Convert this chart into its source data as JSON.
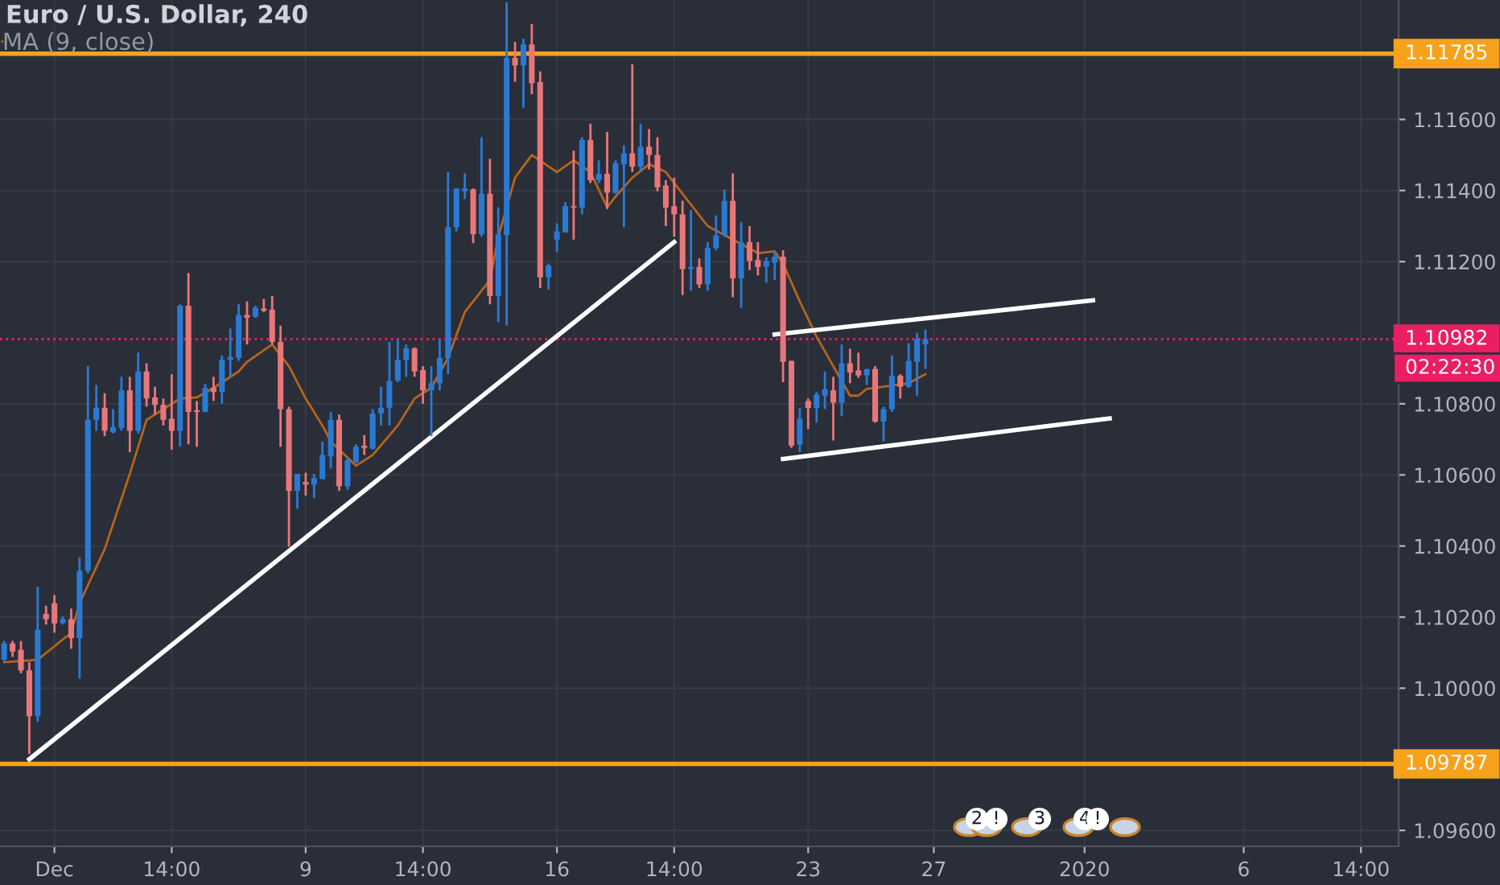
{
  "chart_data": {
    "type": "candlestick",
    "title": "Euro / U.S. Dollar, 240",
    "colors": [
      "#2a7ad4",
      "#e8777a",
      "#e8777a",
      "#e8777a",
      "#2a7ad4",
      "#e8777a",
      "#e8777a",
      "#2a7ad4",
      "#e8777a",
      "#2a7ad4",
      "#2a7ad4",
      "#2a7ad4",
      "#e8777a",
      "#2a7ad4",
      "#2a7ad4",
      "#e8777a",
      "#2a7ad4",
      "#e8777a",
      "#e8777a",
      "#e8777a",
      "#e8777a",
      "#2a7ad4",
      "#e8777a",
      "#e8777a",
      "#2a7ad4",
      "#e8777a",
      "#2a7ad4",
      "#2a7ad4",
      "#2a7ad4",
      "#e8777a",
      "#2a7ad4",
      "#e8777a",
      "#e8777a",
      "#e8777a",
      "#e8777a",
      "#2a7ad4",
      "#e8777a",
      "#2a7ad4",
      "#2a7ad4",
      "#2a7ad4",
      "#e8777a",
      "#2a7ad4",
      "#2a7ad4",
      "#e8777a",
      "#2a7ad4",
      "#2a7ad4",
      "#2a7ad4",
      "#2a7ad4",
      "#2a7ad4",
      "#e8777a",
      "#e8777a",
      "#2a7ad4",
      "#2a7ad4",
      "#2a7ad4",
      "#2a7ad4",
      "#2a7ad4",
      "#e8777a",
      "#2a7ad4",
      "#e8777a",
      "#2a7ad4",
      "#2a7ad4",
      "#e8777a",
      "#2a7ad4",
      "#e8777a",
      "#e8777a",
      "#2a7ad4",
      "#2a7ad4",
      "#2a7ad4",
      "#e8777a",
      "#2a7ad4",
      "#e8777a",
      "#2a7ad4",
      "#e8777a",
      "#2a7ad4",
      "#2a7ad4",
      "#e8777a",
      "#2a7ad4",
      "#e8777a",
      "#e8777a",
      "#e8777a",
      "#e8777a",
      "#e8777a",
      "#2a7ad4",
      "#e8777a",
      "#2a7ad4",
      "#2a7ad4",
      "#2a7ad4",
      "#e8777a",
      "#2a7ad4",
      "#e8777a",
      "#e8777a",
      "#2a7ad4",
      "#2a7ad4",
      "#e8777a",
      "#e8777a",
      "#2a7ad4",
      "#e8777a",
      "#2a7ad4",
      "#2a7ad4",
      "#e8777a",
      "#2a7ad4",
      "#e8777a",
      "#e8777a",
      "#2a7ad4",
      "#e8777a",
      "#2a7ad4",
      "#2a7ad4",
      "#e8777a",
      "#2a7ad4",
      "#2a7ad4",
      "#2a7ad4",
      null,
      null,
      null,
      null,
      null,
      null,
      null,
      null,
      null,
      null,
      null,
      null,
      null,
      null,
      null,
      null,
      null,
      null,
      null,
      null,
      null,
      null,
      null,
      null,
      null,
      null,
      null,
      null,
      null,
      null,
      null,
      null,
      null,
      null,
      null,
      null,
      null,
      null,
      null,
      null,
      null,
      null,
      null,
      null,
      null,
      null,
      null,
      null,
      null,
      null,
      null,
      null,
      null,
      null,
      null,
      null
    ],
    "categories": [
      null,
      null,
      null,
      null,
      null,
      null,
      "Dec",
      null,
      null,
      null,
      null,
      null,
      null,
      null,
      null,
      null,
      null,
      null,
      null,
      null,
      "14:00",
      null,
      null,
      null,
      null,
      null,
      null,
      null,
      null,
      null,
      null,
      null,
      null,
      null,
      null,
      null,
      "9",
      null,
      null,
      null,
      null,
      null,
      null,
      null,
      null,
      null,
      null,
      null,
      null,
      null,
      "14:00",
      null,
      null,
      null,
      null,
      null,
      null,
      null,
      null,
      null,
      null,
      null,
      null,
      null,
      null,
      null,
      "16",
      null,
      null,
      null,
      null,
      null,
      null,
      null,
      null,
      null,
      null,
      null,
      null,
      null,
      "14:00",
      null,
      null,
      null,
      null,
      null,
      null,
      null,
      null,
      null,
      null,
      null,
      null,
      null,
      null,
      null,
      "23",
      null,
      null,
      null,
      null,
      null,
      null,
      null,
      null,
      null,
      null,
      null,
      null,
      null,
      null,
      "27",
      null,
      null,
      null,
      null,
      null,
      null,
      null,
      null,
      null,
      null,
      null,
      null,
      null,
      null,
      null,
      null,
      null,
      "2020",
      null,
      null,
      null,
      null,
      null,
      null,
      null,
      null,
      null,
      null,
      null,
      null,
      null,
      null,
      null,
      null,
      null,
      null,
      "6",
      null,
      null,
      null,
      null,
      null,
      null,
      null,
      null,
      null,
      null,
      null,
      null,
      null,
      "14:00",
      null,
      null,
      null,
      null
    ],
    "ohlc": [
      [
        1.1008,
        1.10133,
        1.10076,
        1.10126
      ],
      [
        1.10126,
        1.10133,
        1.10088,
        1.10103
      ],
      [
        1.10108,
        1.10133,
        1.10042,
        1.1005
      ],
      [
        1.1005,
        1.10073,
        1.09815,
        1.09921
      ],
      [
        1.09921,
        1.10285,
        1.09906,
        1.10164
      ],
      [
        1.10209,
        1.10232,
        1.10179,
        1.10194
      ],
      [
        1.10239,
        1.10262,
        1.10156,
        1.10182
      ],
      [
        1.10183,
        1.10202,
        1.10179,
        1.10194
      ],
      [
        1.10194,
        1.10224,
        1.10111,
        1.10141
      ],
      [
        1.10141,
        1.10368,
        1.10027,
        1.1033
      ],
      [
        1.1033,
        1.10906,
        1.10323,
        1.10755
      ],
      [
        1.10755,
        1.10853,
        1.10724,
        1.10789
      ],
      [
        1.10789,
        1.1083,
        1.10709,
        1.10724
      ],
      [
        1.1072,
        1.10785,
        1.10717,
        1.10735
      ],
      [
        1.10732,
        1.10876,
        1.10724,
        1.10838
      ],
      [
        1.10838,
        1.10876,
        1.10664,
        1.10724
      ],
      [
        1.10724,
        1.10944,
        1.10717,
        1.10891
      ],
      [
        1.10891,
        1.10914,
        1.10792,
        1.10815
      ],
      [
        1.10818,
        1.10848,
        1.1077,
        1.10797
      ],
      [
        1.10797,
        1.10815,
        1.10739,
        1.10755
      ],
      [
        1.10758,
        1.10883,
        1.10671,
        1.10724
      ],
      [
        1.10724,
        1.1108,
        1.10679,
        1.11076
      ],
      [
        1.11076,
        1.11168,
        1.10686,
        1.10777
      ],
      [
        1.10782,
        1.10808,
        1.10679,
        1.10777
      ],
      [
        1.10777,
        1.10856,
        1.10777,
        1.10845
      ],
      [
        1.10845,
        1.10876,
        1.10808,
        1.10833
      ],
      [
        1.10833,
        1.10936,
        1.108,
        1.10924
      ],
      [
        1.10924,
        1.11012,
        1.10876,
        1.10932
      ],
      [
        1.10929,
        1.1108,
        1.10921,
        1.1105
      ],
      [
        1.1105,
        1.11088,
        1.10967,
        1.11042
      ],
      [
        1.11045,
        1.11076,
        1.11042,
        1.1107
      ],
      [
        1.11068,
        1.11095,
        1.11058,
        1.11062
      ],
      [
        1.11065,
        1.11103,
        1.10967,
        1.10974
      ],
      [
        1.10974,
        1.1102,
        1.10679,
        1.10785
      ],
      [
        1.10785,
        1.10792,
        1.10398,
        1.10555
      ],
      [
        1.10555,
        1.10603,
        1.10505,
        1.10603
      ],
      [
        1.1058,
        1.10606,
        1.10542,
        1.10573
      ],
      [
        1.10573,
        1.10603,
        1.10535,
        1.10591
      ],
      [
        1.10588,
        1.10694,
        1.10588,
        1.10656
      ],
      [
        1.10652,
        1.10777,
        1.10618,
        1.10755
      ],
      [
        1.10755,
        1.1077,
        1.10555,
        1.10568
      ],
      [
        1.10568,
        1.10648,
        1.10558,
        1.10641
      ],
      [
        1.10636,
        1.10686,
        1.10633,
        1.10679
      ],
      [
        1.10682,
        1.10712,
        1.10656,
        1.10676
      ],
      [
        1.10674,
        1.10785,
        1.10671,
        1.10773
      ],
      [
        1.10773,
        1.10848,
        1.10739,
        1.10789
      ],
      [
        1.10789,
        1.10974,
        1.10739,
        1.10865
      ],
      [
        1.10865,
        1.10982,
        1.10861,
        1.10924
      ],
      [
        1.10924,
        1.10967,
        1.10876,
        1.10956
      ],
      [
        1.10956,
        1.10959,
        1.10876,
        1.10891
      ],
      [
        1.10895,
        1.10906,
        1.108,
        1.10838
      ],
      [
        1.10838,
        1.10906,
        1.10709,
        1.10858
      ],
      [
        1.10858,
        1.10982,
        1.10838,
        1.10929
      ],
      [
        1.10929,
        1.11452,
        1.10883,
        1.11297
      ],
      [
        1.11297,
        1.11406,
        1.11285,
        1.11406
      ],
      [
        1.11398,
        1.11448,
        1.11376,
        1.11406
      ],
      [
        1.11403,
        1.11406,
        1.11252,
        1.11277
      ],
      [
        1.11277,
        1.1155,
        1.1127,
        1.11391
      ],
      [
        1.11391,
        1.11489,
        1.1108,
        1.11103
      ],
      [
        1.11103,
        1.11353,
        1.1103,
        1.11277
      ],
      [
        1.11274,
        1.1193,
        1.1102,
        1.11773
      ],
      [
        1.11773,
        1.11818,
        1.11706,
        1.11752
      ],
      [
        1.11752,
        1.11827,
        1.11633,
        1.11811
      ],
      [
        1.11811,
        1.11868,
        1.11671,
        1.11702
      ],
      [
        1.11705,
        1.11735,
        1.11126,
        1.11156
      ],
      [
        1.11156,
        1.11194,
        1.11121,
        1.11189
      ],
      [
        1.11262,
        1.11308,
        1.11227,
        1.11285
      ],
      [
        1.11282,
        1.11368,
        1.11282,
        1.11356
      ],
      [
        1.11356,
        1.11512,
        1.11262,
        1.11352
      ],
      [
        1.11352,
        1.1155,
        1.11333,
        1.11542
      ],
      [
        1.11542,
        1.11588,
        1.11421,
        1.11429
      ],
      [
        1.11429,
        1.11485,
        1.11421,
        1.11447
      ],
      [
        1.11447,
        1.11565,
        1.11348,
        1.11394
      ],
      [
        1.11394,
        1.11485,
        1.11391,
        1.11477
      ],
      [
        1.11474,
        1.11527,
        1.11297,
        1.11505
      ],
      [
        1.11505,
        1.11755,
        1.11452,
        1.11467
      ],
      [
        1.11467,
        1.11588,
        1.11452,
        1.11523
      ],
      [
        1.11523,
        1.11573,
        1.11459,
        1.115
      ],
      [
        1.115,
        1.1155,
        1.11398,
        1.11409
      ],
      [
        1.11414,
        1.11429,
        1.113,
        1.11352
      ],
      [
        1.11356,
        1.11436,
        1.1127,
        1.11333
      ],
      [
        1.11333,
        1.11371,
        1.11106,
        1.11179
      ],
      [
        1.11179,
        1.11345,
        1.11118,
        1.11185
      ],
      [
        1.11185,
        1.11209,
        1.11126,
        1.11136
      ],
      [
        1.11136,
        1.11255,
        1.11118,
        1.11239
      ],
      [
        1.11239,
        1.1133,
        1.11232,
        1.11274
      ],
      [
        1.11274,
        1.11403,
        1.1127,
        1.11371
      ],
      [
        1.11371,
        1.11448,
        1.111,
        1.11153
      ],
      [
        1.11153,
        1.11311,
        1.1107,
        1.11255
      ],
      [
        1.11255,
        1.113,
        1.11176,
        1.11202
      ],
      [
        1.11205,
        1.11255,
        1.11161,
        1.11185
      ],
      [
        1.11186,
        1.11212,
        1.11141,
        1.11202
      ],
      [
        1.11197,
        1.11232,
        1.11148,
        1.11214
      ],
      [
        1.11214,
        1.11232,
        1.10861,
        1.10918
      ],
      [
        1.10921,
        1.10921,
        1.10676,
        1.10682
      ],
      [
        1.10685,
        1.10788,
        1.10664,
        1.10758
      ],
      [
        1.10808,
        1.10815,
        1.10729,
        1.10788
      ],
      [
        1.10788,
        1.10833,
        1.10747,
        1.10826
      ],
      [
        1.10823,
        1.10891,
        1.10785,
        1.10841
      ],
      [
        1.10838,
        1.10876,
        1.10697,
        1.10803
      ],
      [
        1.10803,
        1.10967,
        1.10765,
        1.10914
      ],
      [
        1.10914,
        1.10955,
        1.10858,
        1.10888
      ],
      [
        1.10894,
        1.10944,
        1.10873,
        1.1088
      ],
      [
        1.1088,
        1.10898,
        1.10853,
        1.10898
      ],
      [
        1.10898,
        1.10906,
        1.10747,
        1.1075
      ],
      [
        1.1075,
        1.10792,
        1.10694,
        1.10785
      ],
      [
        1.10785,
        1.10936,
        1.10777,
        1.10879
      ],
      [
        1.10879,
        1.10883,
        1.10815,
        1.10848
      ],
      [
        1.10848,
        1.1097,
        1.10845,
        1.10921
      ],
      [
        1.10918,
        1.11,
        1.10823,
        1.10982
      ],
      [
        1.10967,
        1.11009,
        1.10898,
        1.10982
      ],
      null,
      null,
      null,
      null,
      null,
      null,
      null,
      null,
      null,
      null,
      null,
      null,
      null,
      null,
      null,
      null,
      null,
      null,
      null,
      null,
      null,
      null,
      null,
      null,
      null,
      null,
      null,
      null,
      null,
      null,
      null,
      null,
      null,
      null,
      null,
      null,
      null,
      null,
      null,
      null,
      null,
      null,
      null,
      null,
      null,
      null,
      null,
      null,
      null,
      null,
      null,
      null,
      null,
      null,
      null,
      null
    ],
    "series": [
      {
        "name": "MA (9, close)",
        "type": "line",
        "color": "#b5651d",
        "values": [
          1.10073,
          null,
          null,
          null,
          1.1008,
          null,
          null,
          null,
          1.10156,
          1.10239,
          null,
          null,
          1.10391,
          null,
          null,
          1.10603,
          null,
          1.10755,
          null,
          1.10785,
          null,
          1.10815,
          null,
          1.10818,
          null,
          1.10845,
          null,
          null,
          1.10891,
          1.10918,
          null,
          null,
          1.10967,
          null,
          1.10906,
          null,
          1.10815,
          null,
          1.10739,
          1.10694,
          null,
          null,
          1.10626,
          null,
          1.10656,
          null,
          null,
          1.10739,
          null,
          1.10815,
          null,
          1.10845,
          null,
          1.10929,
          null,
          1.11058,
          null,
          null,
          1.11148,
          1.1127,
          null,
          1.11436,
          null,
          1.115,
          null,
          null,
          1.11452,
          null,
          1.11485,
          null,
          1.11452,
          null,
          1.11353,
          1.11383,
          null,
          1.11436,
          null,
          1.11474,
          null,
          1.11452,
          null,
          1.11391,
          null,
          null,
          1.113,
          null,
          null,
          1.11262,
          null,
          null,
          1.11224,
          null,
          1.11229,
          1.11194,
          null,
          1.11088,
          null,
          1.10989,
          null,
          1.10906,
          null,
          1.10823,
          1.10823,
          1.10842,
          null,
          1.10848,
          null,
          null,
          1.10858,
          null,
          1.10883,
          null,
          null,
          null,
          null,
          null,
          null,
          null,
          null,
          null,
          null,
          null,
          null,
          null,
          null,
          null,
          null,
          null,
          null,
          null,
          null,
          null,
          null,
          null,
          null,
          null,
          null,
          null,
          null,
          null,
          null,
          null,
          null,
          null,
          null,
          null,
          null,
          null,
          null,
          null,
          null,
          null,
          null,
          null,
          null,
          null,
          null,
          null,
          null,
          null,
          null,
          null,
          null,
          null,
          null,
          null,
          null
        ]
      },
      {
        "type": "line",
        "color": "#ffffff",
        "values": [
          null,
          null,
          null,
          1.098,
          null,
          null,
          null,
          null,
          null,
          null,
          null,
          null,
          null,
          null,
          null,
          null,
          null,
          null,
          null,
          null,
          null,
          null,
          null,
          null,
          null,
          null,
          null,
          null,
          null,
          null,
          null,
          null,
          null,
          null,
          null,
          null,
          null,
          null,
          null,
          null,
          null,
          null,
          null,
          null,
          null,
          null,
          null,
          null,
          null,
          null,
          null,
          null,
          null,
          null,
          null,
          null,
          null,
          null,
          null,
          null,
          null,
          null,
          null,
          null,
          null,
          null,
          null,
          null,
          null,
          null,
          null,
          null,
          null,
          null,
          null,
          null,
          null,
          null,
          null,
          null,
          1.11255,
          null,
          null,
          null,
          null,
          null,
          null,
          null,
          null,
          null,
          null,
          null,
          null,
          null,
          null,
          null,
          null,
          null,
          null,
          null,
          null,
          null,
          null,
          null,
          null,
          null,
          null,
          null,
          null,
          null,
          null,
          null,
          null,
          null,
          null,
          null,
          null,
          null,
          null,
          null,
          null,
          null,
          null,
          null,
          null,
          null,
          null,
          null,
          null,
          null,
          null,
          null,
          null,
          null,
          null,
          null,
          null,
          null,
          null,
          null,
          null,
          null,
          null,
          null,
          null,
          null,
          null,
          null,
          null,
          null,
          null,
          null,
          null,
          null,
          null,
          null,
          null,
          null,
          null,
          null,
          null,
          null,
          null,
          null,
          null,
          null,
          null
        ]
      },
      {
        "type": "line",
        "color": "#ffffff",
        "values": [
          null,
          null,
          null,
          null,
          null,
          null,
          null,
          null,
          null,
          null,
          null,
          null,
          null,
          null,
          null,
          null,
          null,
          null,
          null,
          null,
          null,
          null,
          null,
          null,
          null,
          null,
          null,
          null,
          null,
          null,
          null,
          null,
          null,
          null,
          null,
          null,
          null,
          null,
          null,
          null,
          null,
          null,
          null,
          null,
          null,
          null,
          null,
          null,
          null,
          null,
          null,
          null,
          null,
          null,
          null,
          null,
          null,
          null,
          null,
          null,
          null,
          null,
          null,
          null,
          null,
          null,
          null,
          null,
          null,
          null,
          null,
          null,
          null,
          null,
          null,
          null,
          null,
          null,
          null,
          null,
          null,
          null,
          null,
          null,
          null,
          null,
          null,
          null,
          null,
          null,
          null,
          null,
          1.10995,
          null,
          null,
          null,
          null,
          null,
          null,
          null,
          null,
          null,
          null,
          null,
          null,
          null,
          null,
          null,
          null,
          null,
          null,
          null,
          null,
          null,
          null,
          null,
          null,
          null,
          null,
          null,
          null,
          null,
          null,
          null,
          null,
          null,
          null,
          null,
          null,
          null,
          1.11091,
          null,
          null,
          null,
          null,
          null,
          null,
          null,
          null,
          null,
          null,
          null,
          null,
          null,
          null,
          null,
          null,
          null,
          null,
          null,
          null,
          null,
          null,
          null,
          null,
          null,
          null,
          null,
          null,
          null,
          null,
          null,
          null,
          null,
          null,
          null,
          null
        ]
      },
      {
        "type": "line",
        "color": "#ffffff",
        "values": [
          null,
          null,
          null,
          null,
          null,
          null,
          null,
          null,
          null,
          null,
          null,
          null,
          null,
          null,
          null,
          null,
          null,
          null,
          null,
          null,
          null,
          null,
          null,
          null,
          null,
          null,
          null,
          null,
          null,
          null,
          null,
          null,
          null,
          null,
          null,
          null,
          null,
          null,
          null,
          null,
          null,
          null,
          null,
          null,
          null,
          null,
          null,
          null,
          null,
          null,
          null,
          null,
          null,
          null,
          null,
          null,
          null,
          null,
          null,
          null,
          null,
          null,
          null,
          null,
          null,
          null,
          null,
          null,
          null,
          null,
          null,
          null,
          null,
          null,
          null,
          null,
          null,
          null,
          null,
          null,
          null,
          null,
          null,
          null,
          null,
          null,
          null,
          null,
          null,
          null,
          null,
          null,
          null,
          1.10645,
          null,
          null,
          null,
          null,
          null,
          null,
          null,
          null,
          null,
          null,
          null,
          null,
          null,
          null,
          null,
          null,
          null,
          null,
          null,
          null,
          null,
          null,
          null,
          null,
          null,
          null,
          null,
          null,
          null,
          null,
          null,
          null,
          null,
          null,
          null,
          null,
          null,
          null,
          1.10759,
          null,
          null,
          null,
          null,
          null,
          null,
          null,
          null,
          null,
          null,
          null,
          null,
          null,
          null,
          null,
          null,
          null,
          null,
          null,
          null,
          null,
          null,
          null,
          null,
          null,
          null,
          null,
          null,
          null,
          null,
          null,
          null,
          null,
          null
        ]
      }
    ],
    "ylim": [
      1.09555,
      1.11936
    ],
    "yticks": [
      {
        "value": 1.096,
        "label": "1.09600"
      },
      {
        "value": 1.1,
        "label": "1.10000"
      },
      {
        "value": 1.102,
        "label": "1.10200"
      },
      {
        "value": 1.104,
        "label": "1.10400"
      },
      {
        "value": 1.106,
        "label": "1.10600"
      },
      {
        "value": 1.108,
        "label": "1.10800"
      },
      {
        "value": 1.112,
        "label": "1.11200"
      },
      {
        "value": 1.114,
        "label": "1.11400"
      },
      {
        "value": 1.116,
        "label": "1.11600"
      }
    ],
    "ref_lines": [
      {
        "axis": "y",
        "value": 1.11785,
        "label": "1.11785",
        "color": "#f7a21b",
        "line_style": "solid"
      },
      {
        "axis": "y",
        "value": 1.09787,
        "label": "1.09787",
        "color": "#f7a21b",
        "line_style": "solid"
      },
      {
        "axis": "y",
        "value": 1.10982,
        "label": "1.10982",
        "color": "#e91e63",
        "line_style": "dotted"
      }
    ],
    "annotations": [
      "02:22:30",
      "2",
      "!",
      "3",
      "4",
      "!"
    ],
    "grid": true,
    "legend": "top left"
  }
}
